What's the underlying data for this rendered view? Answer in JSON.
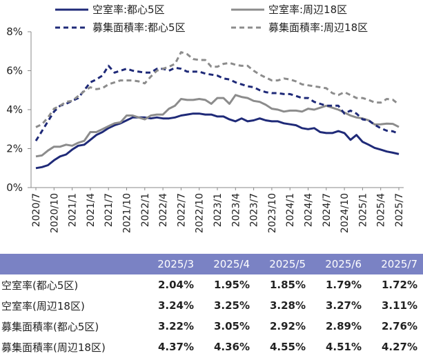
{
  "chart_data": {
    "type": "line",
    "categories": [
      "2020/7",
      null,
      null,
      "2020/10",
      null,
      null,
      "2021/1",
      null,
      null,
      "2021/4",
      null,
      null,
      "2021/7",
      null,
      null,
      "2021/10",
      null,
      null,
      "2022/1",
      null,
      null,
      "2022/4",
      null,
      null,
      "2022/7",
      null,
      null,
      "2022/10",
      null,
      null,
      "2023/1",
      null,
      null,
      "2023/4",
      null,
      null,
      "2023/7",
      null,
      null,
      "2023/10",
      null,
      null,
      "2024/1",
      null,
      null,
      "2024/4",
      null,
      null,
      "2024/7",
      null,
      null,
      "2024/10",
      null,
      null,
      "2025/1",
      null,
      null,
      "2025/4",
      null,
      null,
      "2025/7"
    ],
    "series": [
      {
        "name": "空室率:都心5区",
        "color": "#1f2a78",
        "dashed": false,
        "values": [
          1.0,
          1.05,
          1.15,
          1.4,
          1.6,
          1.7,
          1.95,
          2.15,
          2.2,
          2.45,
          2.7,
          2.85,
          3.05,
          3.2,
          3.3,
          3.45,
          3.6,
          3.6,
          3.6,
          3.55,
          3.6,
          3.55,
          3.55,
          3.6,
          3.7,
          3.75,
          3.8,
          3.8,
          3.75,
          3.75,
          3.65,
          3.65,
          3.5,
          3.4,
          3.55,
          3.4,
          3.45,
          3.55,
          3.45,
          3.4,
          3.4,
          3.3,
          3.25,
          3.2,
          3.05,
          3.0,
          3.05,
          2.85,
          2.8,
          2.8,
          2.9,
          2.8,
          2.45,
          2.7,
          2.35,
          2.2,
          2.04,
          1.95,
          1.85,
          1.79,
          1.72
        ]
      },
      {
        "name": "空室率:周辺18区",
        "color": "#8c8c8c",
        "dashed": false,
        "values": [
          1.6,
          1.65,
          1.9,
          2.1,
          2.1,
          2.2,
          2.15,
          2.3,
          2.4,
          2.85,
          2.85,
          3.0,
          3.15,
          3.3,
          3.35,
          3.7,
          3.7,
          3.6,
          3.5,
          3.7,
          3.75,
          3.75,
          4.05,
          4.2,
          4.55,
          4.5,
          4.5,
          4.55,
          4.5,
          4.3,
          4.6,
          4.6,
          4.3,
          4.75,
          4.65,
          4.6,
          4.45,
          4.4,
          4.25,
          4.05,
          4.0,
          3.9,
          3.95,
          3.95,
          3.9,
          4.05,
          4.0,
          4.1,
          4.2,
          4.1,
          4.0,
          3.85,
          3.7,
          3.6,
          3.55,
          3.45,
          3.24,
          3.25,
          3.28,
          3.27,
          3.11
        ]
      },
      {
        "name": "募集面積率:都心5区",
        "color": "#1f2a78",
        "dashed": true,
        "values": [
          2.4,
          2.9,
          3.4,
          3.9,
          4.2,
          4.3,
          4.45,
          4.6,
          5.0,
          5.4,
          5.55,
          5.75,
          6.25,
          5.9,
          6.0,
          6.1,
          6.0,
          5.95,
          5.9,
          5.9,
          6.1,
          6.1,
          6.0,
          6.15,
          6.1,
          5.95,
          5.95,
          5.95,
          5.85,
          5.8,
          5.75,
          5.6,
          5.55,
          5.4,
          5.3,
          5.2,
          5.15,
          5.0,
          4.9,
          4.85,
          4.85,
          4.8,
          4.8,
          4.7,
          4.6,
          4.6,
          4.4,
          4.3,
          4.2,
          4.2,
          4.2,
          3.8,
          3.95,
          3.8,
          3.5,
          3.45,
          3.22,
          3.05,
          2.92,
          2.89,
          2.76
        ]
      },
      {
        "name": "募集面積率:周辺18区",
        "color": "#8c8c8c",
        "dashed": true,
        "values": [
          3.1,
          3.25,
          3.6,
          4.05,
          4.2,
          4.4,
          4.45,
          4.7,
          4.95,
          5.15,
          5.05,
          5.1,
          5.3,
          5.4,
          5.5,
          5.5,
          5.5,
          5.45,
          5.35,
          5.7,
          6.0,
          6.1,
          6.2,
          6.35,
          6.95,
          6.85,
          6.6,
          6.55,
          6.55,
          6.2,
          6.2,
          6.35,
          6.4,
          6.3,
          6.25,
          6.25,
          6.0,
          5.8,
          5.65,
          5.5,
          5.5,
          5.6,
          5.55,
          5.45,
          5.3,
          5.25,
          5.2,
          5.15,
          5.1,
          4.85,
          4.75,
          4.9,
          4.75,
          4.6,
          4.6,
          4.5,
          4.37,
          4.36,
          4.55,
          4.51,
          4.27
        ]
      }
    ],
    "ylim": [
      0,
      8
    ],
    "yticks": [
      {
        "value": 0,
        "label": "0%"
      },
      {
        "value": 2,
        "label": "2%"
      },
      {
        "value": 4,
        "label": "4%"
      },
      {
        "value": 6,
        "label": "6%"
      },
      {
        "value": 8,
        "label": "8%"
      }
    ],
    "grid": false
  },
  "table": {
    "columns": [
      "2025/3",
      "2025/4",
      "2025/5",
      "2025/6",
      "2025/7"
    ],
    "rows": [
      [
        "空室率(都心5区)",
        "2.04%",
        "1.95%",
        "1.85%",
        "1.79%",
        "1.72%"
      ],
      [
        "空室率(周辺18区)",
        "3.24%",
        "3.25%",
        "3.28%",
        "3.27%",
        "3.11%"
      ],
      [
        "募集面積率(都心5区)",
        "3.22%",
        "3.05%",
        "2.92%",
        "2.89%",
        "2.76%"
      ],
      [
        "募集面積率(周辺18区)",
        "4.37%",
        "4.36%",
        "4.55%",
        "4.51%",
        "4.27%"
      ]
    ]
  }
}
